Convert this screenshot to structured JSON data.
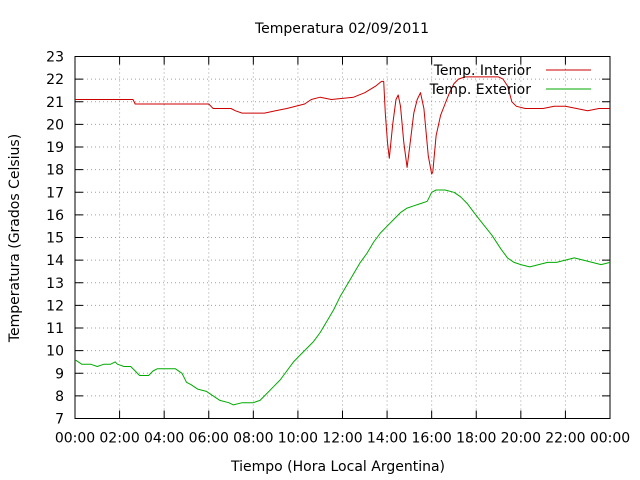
{
  "chart_data": {
    "type": "line",
    "title": "Temperatura 02/09/2011",
    "xlabel": "Tiempo (Hora Local Argentina)",
    "ylabel": "Temperatura (Grados Celsius)",
    "xlim": [
      0,
      24
    ],
    "ylim": [
      7,
      23
    ],
    "x_ticks": [
      0,
      2,
      4,
      6,
      8,
      10,
      12,
      14,
      16,
      18,
      20,
      22,
      24
    ],
    "x_tick_labels": [
      "00:00",
      "02:00",
      "04:00",
      "06:00",
      "08:00",
      "10:00",
      "12:00",
      "14:00",
      "16:00",
      "18:00",
      "20:00",
      "22:00",
      "00:00"
    ],
    "y_ticks": [
      7,
      8,
      9,
      10,
      11,
      12,
      13,
      14,
      15,
      16,
      17,
      18,
      19,
      20,
      21,
      22,
      23
    ],
    "y_tick_labels": [
      "7",
      "8",
      "9",
      "10",
      "11",
      "12",
      "13",
      "14",
      "15",
      "16",
      "17",
      "18",
      "19",
      "20",
      "21",
      "22",
      "23"
    ],
    "grid": true,
    "legend_position": "top-right",
    "series": [
      {
        "name": "Temp. Interior",
        "color": "#cc0000",
        "points": [
          [
            0,
            21.1
          ],
          [
            2.6,
            21.1
          ],
          [
            2.7,
            20.9
          ],
          [
            6.0,
            20.9
          ],
          [
            6.1,
            20.8
          ],
          [
            6.2,
            20.7
          ],
          [
            7.0,
            20.7
          ],
          [
            7.2,
            20.6
          ],
          [
            7.5,
            20.5
          ],
          [
            8.5,
            20.5
          ],
          [
            9.0,
            20.6
          ],
          [
            9.5,
            20.7
          ],
          [
            10.3,
            20.9
          ],
          [
            10.6,
            21.1
          ],
          [
            11.0,
            21.2
          ],
          [
            11.5,
            21.1
          ],
          [
            12.5,
            21.2
          ],
          [
            13.0,
            21.4
          ],
          [
            13.5,
            21.7
          ],
          [
            13.75,
            21.9
          ],
          [
            13.85,
            21.9
          ],
          [
            13.92,
            20.5
          ],
          [
            14.02,
            19.2
          ],
          [
            14.1,
            18.5
          ],
          [
            14.25,
            20.0
          ],
          [
            14.4,
            21.1
          ],
          [
            14.5,
            21.3
          ],
          [
            14.6,
            20.8
          ],
          [
            14.75,
            19.2
          ],
          [
            14.9,
            18.1
          ],
          [
            15.05,
            19.3
          ],
          [
            15.2,
            20.5
          ],
          [
            15.35,
            21.1
          ],
          [
            15.5,
            21.4
          ],
          [
            15.65,
            20.7
          ],
          [
            15.85,
            18.6
          ],
          [
            16.0,
            17.8
          ],
          [
            16.05,
            17.9
          ],
          [
            16.2,
            19.5
          ],
          [
            16.4,
            20.4
          ],
          [
            16.6,
            20.9
          ],
          [
            16.8,
            21.4
          ],
          [
            17.0,
            21.8
          ],
          [
            17.2,
            22.0
          ],
          [
            17.5,
            22.1
          ],
          [
            19.0,
            22.1
          ],
          [
            19.2,
            22.0
          ],
          [
            19.4,
            21.7
          ],
          [
            19.6,
            21.0
          ],
          [
            19.8,
            20.8
          ],
          [
            20.2,
            20.7
          ],
          [
            21.0,
            20.7
          ],
          [
            21.5,
            20.8
          ],
          [
            22.0,
            20.8
          ],
          [
            22.5,
            20.7
          ],
          [
            23.0,
            20.6
          ],
          [
            23.5,
            20.7
          ],
          [
            24.0,
            20.7
          ]
        ]
      },
      {
        "name": "Temp. Exterior",
        "color": "#00aa00",
        "points": [
          [
            0,
            9.6
          ],
          [
            0.3,
            9.4
          ],
          [
            0.7,
            9.4
          ],
          [
            1.0,
            9.3
          ],
          [
            1.3,
            9.4
          ],
          [
            1.6,
            9.4
          ],
          [
            1.8,
            9.5
          ],
          [
            1.9,
            9.4
          ],
          [
            2.2,
            9.3
          ],
          [
            2.5,
            9.3
          ],
          [
            2.7,
            9.1
          ],
          [
            2.9,
            8.9
          ],
          [
            3.3,
            8.9
          ],
          [
            3.5,
            9.1
          ],
          [
            3.7,
            9.2
          ],
          [
            4.5,
            9.2
          ],
          [
            4.8,
            9.0
          ],
          [
            5.0,
            8.6
          ],
          [
            5.2,
            8.5
          ],
          [
            5.5,
            8.3
          ],
          [
            5.9,
            8.2
          ],
          [
            6.2,
            8.0
          ],
          [
            6.5,
            7.8
          ],
          [
            6.9,
            7.7
          ],
          [
            7.1,
            7.6
          ],
          [
            7.5,
            7.7
          ],
          [
            8.0,
            7.7
          ],
          [
            8.3,
            7.8
          ],
          [
            8.5,
            8.0
          ],
          [
            8.9,
            8.4
          ],
          [
            9.2,
            8.7
          ],
          [
            9.5,
            9.1
          ],
          [
            9.8,
            9.5
          ],
          [
            10.1,
            9.8
          ],
          [
            10.4,
            10.1
          ],
          [
            10.7,
            10.4
          ],
          [
            11.0,
            10.8
          ],
          [
            11.3,
            11.3
          ],
          [
            11.6,
            11.8
          ],
          [
            11.9,
            12.4
          ],
          [
            12.2,
            12.9
          ],
          [
            12.5,
            13.4
          ],
          [
            12.8,
            13.9
          ],
          [
            13.1,
            14.3
          ],
          [
            13.4,
            14.8
          ],
          [
            13.7,
            15.2
          ],
          [
            14.0,
            15.5
          ],
          [
            14.3,
            15.8
          ],
          [
            14.6,
            16.1
          ],
          [
            14.9,
            16.3
          ],
          [
            15.2,
            16.4
          ],
          [
            15.5,
            16.5
          ],
          [
            15.8,
            16.6
          ],
          [
            16.0,
            17.0
          ],
          [
            16.2,
            17.1
          ],
          [
            16.6,
            17.1
          ],
          [
            17.0,
            17.0
          ],
          [
            17.3,
            16.8
          ],
          [
            17.6,
            16.5
          ],
          [
            17.9,
            16.1
          ],
          [
            18.3,
            15.6
          ],
          [
            18.7,
            15.1
          ],
          [
            19.1,
            14.5
          ],
          [
            19.4,
            14.1
          ],
          [
            19.7,
            13.9
          ],
          [
            20.0,
            13.8
          ],
          [
            20.4,
            13.7
          ],
          [
            20.8,
            13.8
          ],
          [
            21.2,
            13.9
          ],
          [
            21.6,
            13.9
          ],
          [
            22.0,
            14.0
          ],
          [
            22.4,
            14.1
          ],
          [
            22.8,
            14.0
          ],
          [
            23.2,
            13.9
          ],
          [
            23.6,
            13.8
          ],
          [
            24.0,
            13.9
          ]
        ]
      }
    ]
  }
}
